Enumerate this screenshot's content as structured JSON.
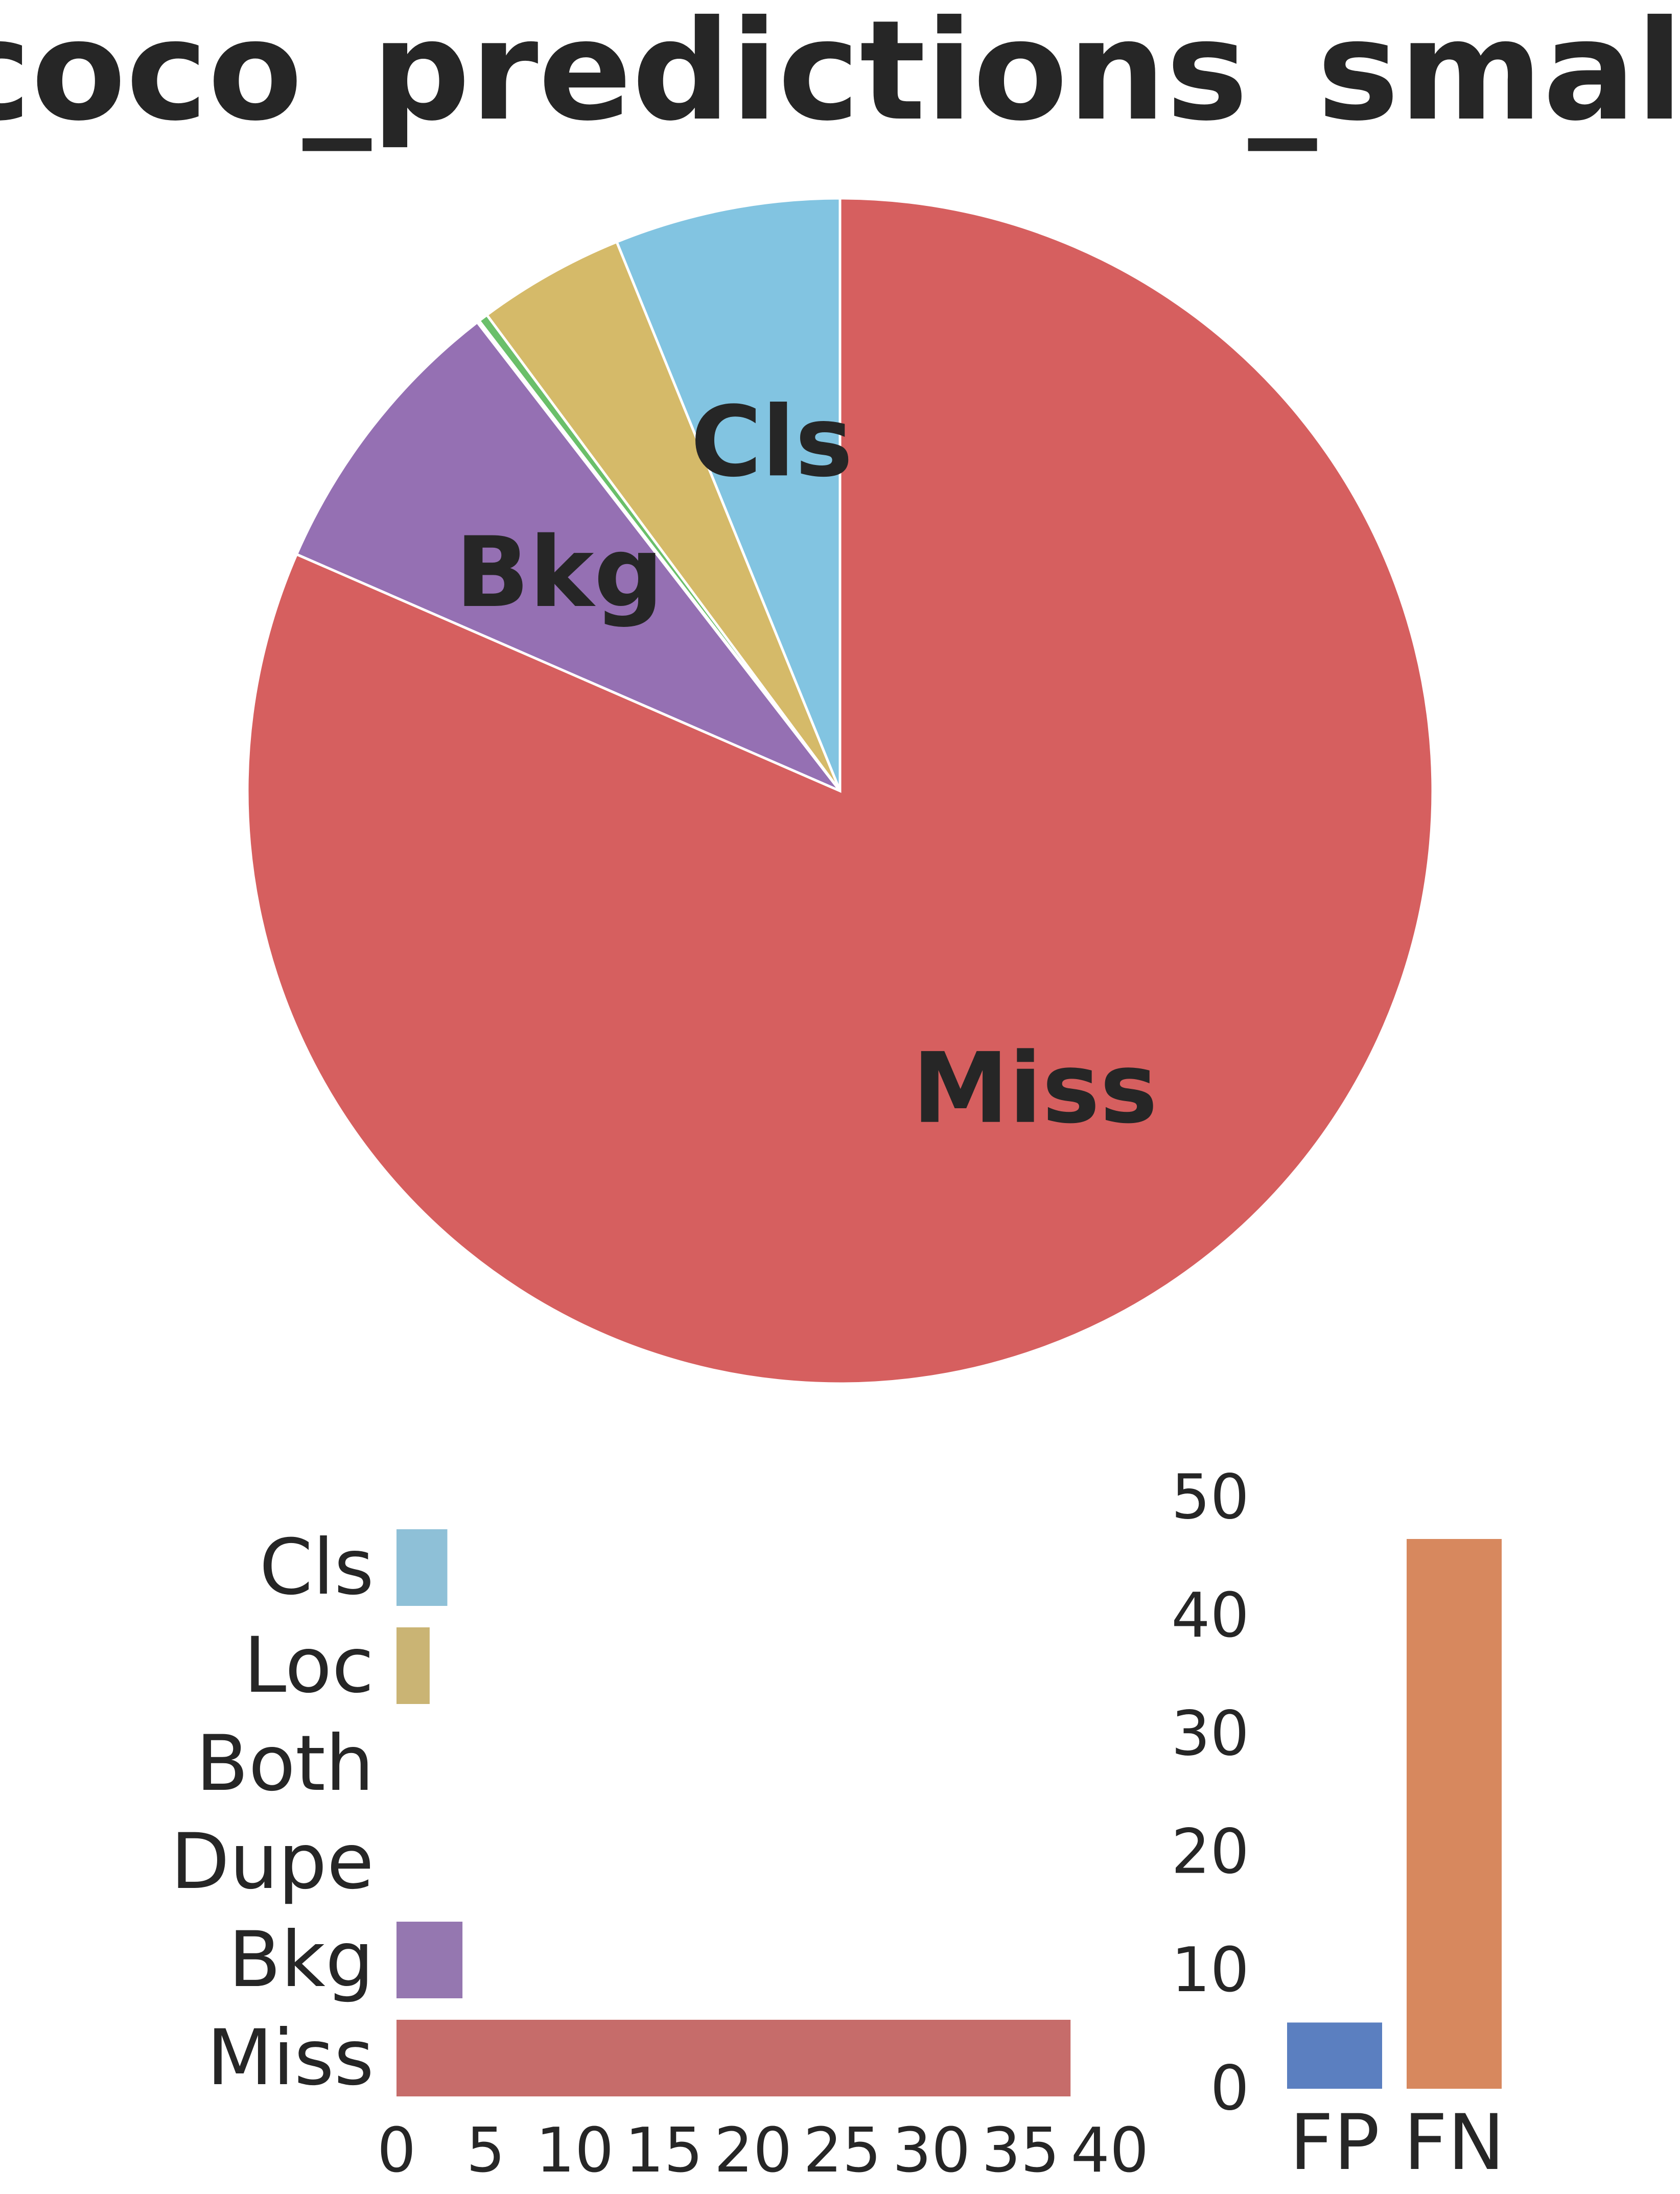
{
  "title": "coco_predictions_small",
  "colors": {
    "Cls": "#82c4e1",
    "Loc": "#d5ba69",
    "Both": "#6abf6a",
    "Dupe": "#b3b3b3",
    "Bkg": "#9570b3",
    "Miss": "#d65f5f",
    "bar_Cls": "#8ec0d7",
    "bar_Loc": "#cab474",
    "bar_Bkg": "#9577b0",
    "bar_Miss": "#c66c6a",
    "FP": "#5b7fc0",
    "FN": "#d7885e"
  },
  "chart_data": [
    {
      "type": "pie",
      "title": "coco_predictions_small",
      "slices": [
        {
          "label": "Cls",
          "value": 2.85,
          "show_label": true
        },
        {
          "label": "Loc",
          "value": 1.86,
          "show_label": false
        },
        {
          "label": "Both",
          "value": 0.12,
          "show_label": false
        },
        {
          "label": "Dupe",
          "value": 0.03,
          "show_label": false
        },
        {
          "label": "Bkg",
          "value": 3.7,
          "show_label": true
        },
        {
          "label": "Miss",
          "value": 37.8,
          "show_label": true
        }
      ],
      "start": "top",
      "direction": "counterclockwise"
    },
    {
      "type": "bar",
      "orientation": "horizontal",
      "categories": [
        "Cls",
        "Loc",
        "Both",
        "Dupe",
        "Bkg",
        "Miss"
      ],
      "values": [
        2.85,
        1.86,
        0,
        0,
        3.7,
        37.8
      ],
      "xlim": [
        0,
        40
      ],
      "xticks": [
        "0",
        "5",
        "10",
        "15",
        "20",
        "25",
        "30",
        "35",
        "40"
      ]
    },
    {
      "type": "bar",
      "categories": [
        "FP",
        "FN"
      ],
      "values": [
        5.6,
        46.5
      ],
      "ylim": [
        0,
        50
      ],
      "yticks": [
        "0",
        "10",
        "20",
        "30",
        "40",
        "50"
      ]
    }
  ]
}
